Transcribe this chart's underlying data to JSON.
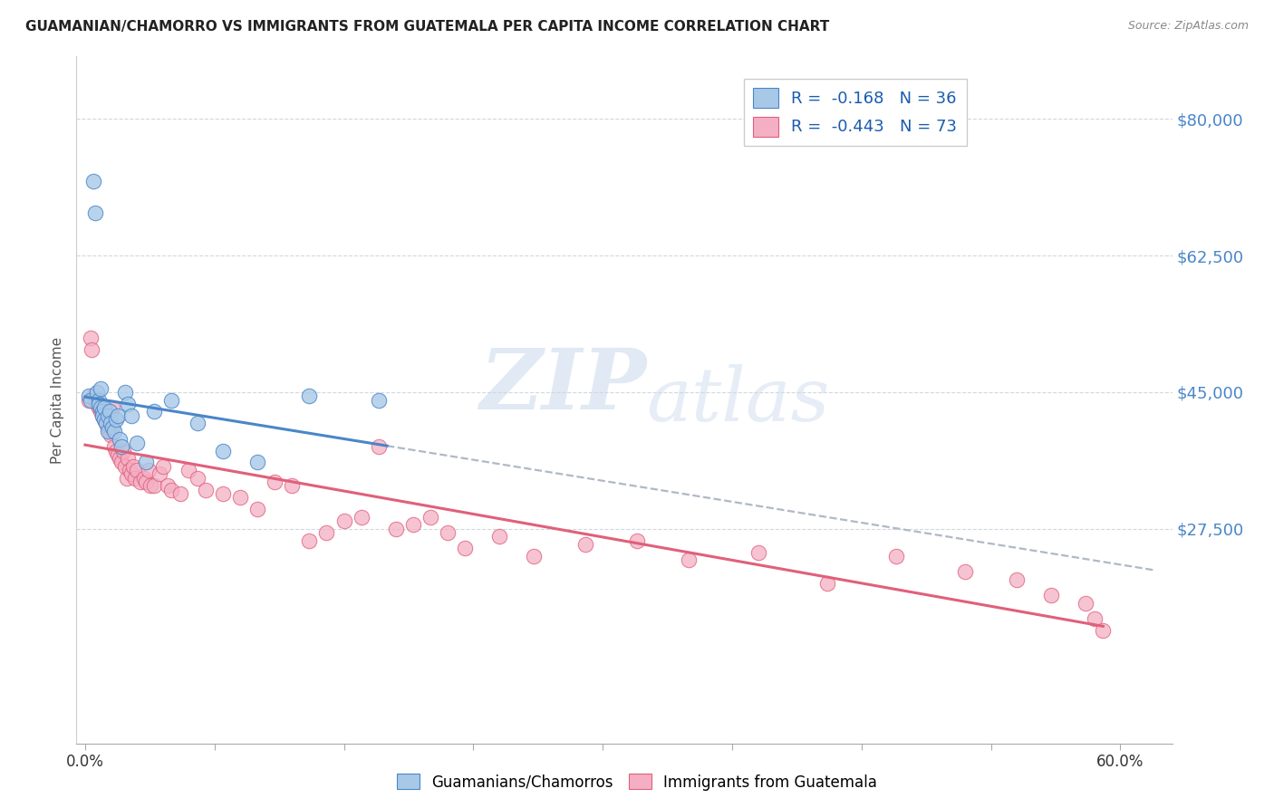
{
  "title": "GUAMANIAN/CHAMORRO VS IMMIGRANTS FROM GUATEMALA PER CAPITA INCOME CORRELATION CHART",
  "source": "Source: ZipAtlas.com",
  "ylabel": "Per Capita Income",
  "y_ticks": [
    0,
    27500,
    45000,
    62500,
    80000
  ],
  "y_tick_labels": [
    "",
    "$27,500",
    "$45,000",
    "$62,500",
    "$80,000"
  ],
  "xlim": [
    -0.005,
    0.63
  ],
  "ylim": [
    0,
    88000
  ],
  "color_blue": "#a8c8e8",
  "color_pink": "#f4afc4",
  "trendline_blue": "#4a86c8",
  "trendline_pink": "#e0607a",
  "trendline_dashed": "#b0b8c8",
  "watermark_zip": "ZIP",
  "watermark_atlas": "atlas",
  "guamanians_x": [
    0.002,
    0.003,
    0.005,
    0.006,
    0.007,
    0.008,
    0.008,
    0.009,
    0.009,
    0.01,
    0.01,
    0.011,
    0.011,
    0.012,
    0.013,
    0.013,
    0.014,
    0.015,
    0.016,
    0.017,
    0.018,
    0.019,
    0.02,
    0.021,
    0.023,
    0.025,
    0.027,
    0.03,
    0.035,
    0.04,
    0.05,
    0.065,
    0.08,
    0.1,
    0.13,
    0.17
  ],
  "guamanians_y": [
    44500,
    44000,
    72000,
    68000,
    45000,
    44000,
    43500,
    45500,
    43000,
    42500,
    42000,
    41500,
    43000,
    41000,
    42000,
    40000,
    42500,
    41000,
    40500,
    40000,
    41500,
    42000,
    39000,
    38000,
    45000,
    43500,
    42000,
    38500,
    36000,
    42500,
    44000,
    41000,
    37500,
    36000,
    44500,
    44000
  ],
  "guatemalans_x": [
    0.002,
    0.003,
    0.004,
    0.005,
    0.006,
    0.007,
    0.008,
    0.009,
    0.01,
    0.01,
    0.011,
    0.012,
    0.013,
    0.014,
    0.015,
    0.016,
    0.017,
    0.018,
    0.019,
    0.02,
    0.021,
    0.022,
    0.023,
    0.024,
    0.025,
    0.026,
    0.027,
    0.028,
    0.029,
    0.03,
    0.032,
    0.034,
    0.035,
    0.037,
    0.038,
    0.04,
    0.043,
    0.045,
    0.048,
    0.05,
    0.055,
    0.06,
    0.065,
    0.07,
    0.08,
    0.09,
    0.1,
    0.11,
    0.12,
    0.13,
    0.14,
    0.15,
    0.16,
    0.17,
    0.18,
    0.19,
    0.2,
    0.21,
    0.22,
    0.24,
    0.26,
    0.29,
    0.32,
    0.35,
    0.39,
    0.43,
    0.47,
    0.51,
    0.54,
    0.56,
    0.58,
    0.585,
    0.59
  ],
  "guatemalans_y": [
    44000,
    52000,
    50500,
    44500,
    44000,
    43500,
    43000,
    42500,
    42000,
    43000,
    41500,
    41000,
    40500,
    40000,
    39500,
    43000,
    38000,
    37500,
    37000,
    36500,
    36000,
    37500,
    35500,
    34000,
    36500,
    35000,
    34500,
    35500,
    34000,
    35000,
    33500,
    34000,
    33500,
    35000,
    33000,
    33000,
    34500,
    35500,
    33000,
    32500,
    32000,
    35000,
    34000,
    32500,
    32000,
    31500,
    30000,
    33500,
    33000,
    26000,
    27000,
    28500,
    29000,
    38000,
    27500,
    28000,
    29000,
    27000,
    25000,
    26500,
    24000,
    25500,
    26000,
    23500,
    24500,
    20500,
    24000,
    22000,
    21000,
    19000,
    18000,
    16000,
    14500
  ]
}
